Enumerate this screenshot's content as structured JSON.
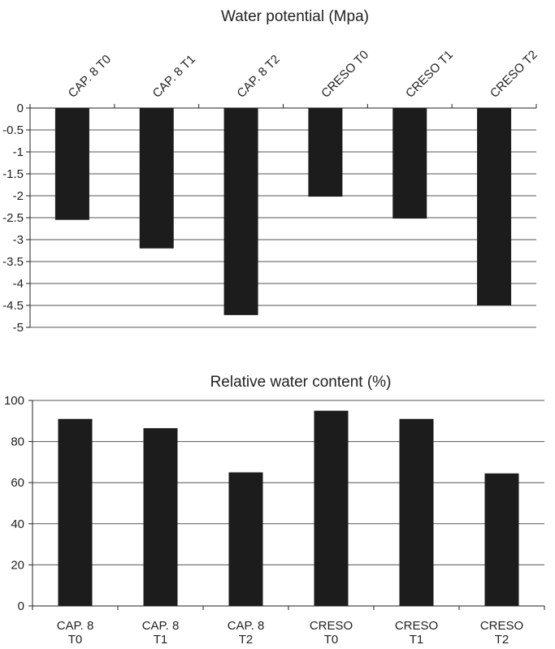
{
  "chart_data": [
    {
      "type": "bar",
      "title": "Water potential (Mpa)",
      "categories": [
        "CAP. 8 T0",
        "CAP. 8 T1",
        "CAP. 8 T2",
        "CRESO T0",
        "CRESO T1",
        "CRESO T2"
      ],
      "values": [
        -2.55,
        -3.2,
        -4.72,
        -2.02,
        -2.52,
        -4.5
      ],
      "ylim": [
        -5,
        0
      ],
      "yticks": [
        "0",
        "-0.5",
        "-1",
        "-1.5",
        "-2",
        "-2.5",
        "-3",
        "-3.5",
        "-4",
        "-4.5",
        "-5"
      ],
      "xaxis_position": "top",
      "tick_label_rotation": -45,
      "grid": true,
      "bar_color": "#1c1c1c"
    },
    {
      "type": "bar",
      "title": "Relative water content (%)",
      "categories": [
        [
          "CAP. 8",
          "T0"
        ],
        [
          "CAP. 8",
          "T1"
        ],
        [
          "CAP. 8",
          "T2"
        ],
        [
          "CRESO",
          "T0"
        ],
        [
          "CRESO",
          "T1"
        ],
        [
          "CRESO",
          "T2"
        ]
      ],
      "values": [
        91,
        86.5,
        65,
        95,
        91,
        64.5
      ],
      "ylim": [
        0,
        100
      ],
      "yticks": [
        "0",
        "20",
        "40",
        "60",
        "80",
        "100"
      ],
      "xaxis_position": "bottom",
      "grid": true,
      "bar_color": "#1c1c1c"
    }
  ]
}
